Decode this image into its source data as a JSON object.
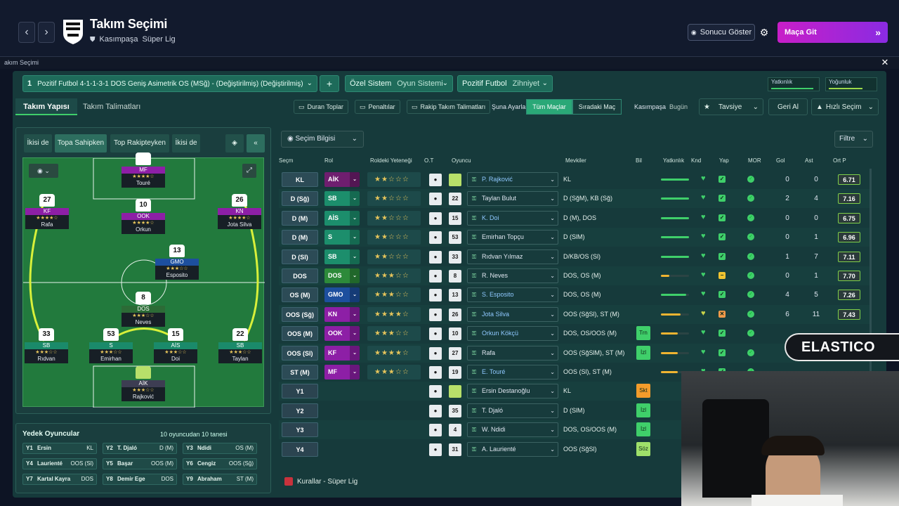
{
  "header": {
    "title": "Takım Seçimi",
    "club": "Kasımpaşa",
    "league": "Süper Lig",
    "results_button": "Sonucu Göster",
    "match_button": "Maça Git"
  },
  "subbar": {
    "title": "akım Seçimi"
  },
  "tactic": {
    "number": "1",
    "name": "Pozitif Futbol 4-1-1-3-1 DOS Geniş Asimetrik OS (MSğ) - (Değiştirilmiş) (Değiştirilmiş)",
    "add": "+",
    "system_label": "Özel Sistem",
    "system_value": "Oyun Sistemi",
    "mentality_label": "Pozitif Futbol",
    "mentality_value": "Zihniyet",
    "familiarity": "Yatkınlık",
    "intensity": "Yoğunluk"
  },
  "tabs": {
    "structure": "Takım Yapısı",
    "instructions": "Takım Talimatları"
  },
  "toolbar": {
    "set_pieces": "Duran Toplar",
    "penalties": "Penaltılar",
    "opposition": "Rakip Takım Talimatları",
    "adjust_label": "Şuna Ayarla",
    "all_matches": "Tüm Maçlar",
    "next_match": "Sıradaki Maç",
    "club": "Kasımpaşa",
    "today": "Bugün",
    "recommend": "Tavsiye",
    "undo": "Geri Al",
    "quick_pick": "Hızlı Seçim"
  },
  "pitch_tabs": [
    "İkisi de",
    "Topa Sahipken",
    "Top Rakipteyken",
    "İkisi de"
  ],
  "pitch_players": [
    {
      "num": "",
      "role": "MF",
      "stars": "★★★★☆",
      "name": "Touré",
      "color": "#8d1fa6"
    },
    {
      "num": "27",
      "role": "KF",
      "stars": "★★★★☆",
      "name": "Rafa",
      "color": "#8d1fa6"
    },
    {
      "num": "10",
      "role": "OOK",
      "stars": "★★★★☆",
      "name": "Orkun",
      "color": "#8d1fa6"
    },
    {
      "num": "26",
      "role": "KN",
      "stars": "★★★★☆",
      "name": "Jota Silva",
      "color": "#8d1fa6"
    },
    {
      "num": "13",
      "role": "GMO",
      "stars": "★★★☆☆",
      "name": "Esposito",
      "color": "#1d4f9e"
    },
    {
      "num": "8",
      "role": "DOS",
      "stars": "★★★☆☆",
      "name": "Neves",
      "color": "#2c6b36"
    },
    {
      "num": "33",
      "role": "SB",
      "stars": "★★★☆☆",
      "name": "Rıdvan",
      "color": "#1a8a6a"
    },
    {
      "num": "53",
      "role": "S",
      "stars": "★★★☆☆",
      "name": "Emirhan",
      "color": "#1a8a6a"
    },
    {
      "num": "15",
      "role": "AİS",
      "stars": "★★★☆☆",
      "name": "Doi",
      "color": "#1a8a6a"
    },
    {
      "num": "22",
      "role": "SB",
      "stars": "★★★☆☆",
      "name": "Taylan",
      "color": "#1a8a6a"
    },
    {
      "num": "",
      "role": "AİK",
      "stars": "★★★☆☆",
      "name": "Rajković",
      "color": "#3d3d52"
    }
  ],
  "subs": {
    "title": "Yedek Oyuncular",
    "count": "10 oyuncudan 10 tanesi",
    "items": [
      {
        "code": "Y1",
        "name": "Ersin",
        "pos": "KL"
      },
      {
        "code": "Y2",
        "name": "T. Djaló",
        "pos": "D (M)"
      },
      {
        "code": "Y3",
        "name": "Ndidi",
        "pos": "OS (M)"
      },
      {
        "code": "Y4",
        "name": "Laurienté",
        "pos": "OOS (Sl)"
      },
      {
        "code": "Y5",
        "name": "Başar",
        "pos": "OOS (M)"
      },
      {
        "code": "Y6",
        "name": "Cengiz",
        "pos": "OOS (Sğ)"
      },
      {
        "code": "Y7",
        "name": "Kartal Kayra",
        "pos": "DOS"
      },
      {
        "code": "Y8",
        "name": "Demir Ege",
        "pos": "DOS"
      },
      {
        "code": "Y9",
        "name": "Abraham",
        "pos": "ST (M)"
      }
    ]
  },
  "table": {
    "selection_info": "Seçim Bilgisi",
    "filter": "Filtre",
    "headers": [
      "Seçm",
      "Rol",
      "Roldeki Yeteneği",
      "O.T",
      "Oyuncu",
      "Mevkiler",
      "Bil",
      "Yatkınlık",
      "Knd",
      "Yap",
      "MOR",
      "Gol",
      "Ast",
      "Ort P"
    ],
    "rows": [
      {
        "sel": "KL",
        "role": "AİK",
        "stars": "★★☆☆☆",
        "shirt": "",
        "player": "P. Rajković",
        "pos": "KL",
        "bil": "",
        "goals": "0",
        "assists": "0",
        "rating": "6.71"
      },
      {
        "sel": "D (Sğ)",
        "role": "SB",
        "stars": "★★☆☆☆",
        "shirt": "22",
        "player": "Taylan Bulut",
        "pos": "D (SğM), KB (Sğ)",
        "bil": "",
        "goals": "2",
        "assists": "4",
        "rating": "7.16"
      },
      {
        "sel": "D (M)",
        "role": "AİS",
        "stars": "★★☆☆☆",
        "shirt": "15",
        "player": "K. Doi",
        "pos": "D (M), DOS",
        "bil": "",
        "goals": "0",
        "assists": "0",
        "rating": "6.75"
      },
      {
        "sel": "D (M)",
        "role": "S",
        "stars": "★★☆☆☆",
        "shirt": "53",
        "player": "Emirhan Topçu",
        "pos": "D (SlM)",
        "bil": "",
        "goals": "0",
        "assists": "1",
        "rating": "6.96"
      },
      {
        "sel": "D (Sl)",
        "role": "SB",
        "stars": "★★☆☆☆",
        "shirt": "33",
        "player": "Rıdvan Yılmaz",
        "pos": "D/KB/OS (Sl)",
        "bil": "",
        "goals": "1",
        "assists": "7",
        "rating": "7.11"
      },
      {
        "sel": "DOS",
        "role": "DOS",
        "stars": "★★★☆☆",
        "shirt": "8",
        "player": "R. Neves",
        "pos": "DOS, OS (M)",
        "bil": "",
        "goals": "0",
        "assists": "1",
        "rating": "7.70"
      },
      {
        "sel": "OS (M)",
        "role": "GMO",
        "stars": "★★★☆☆",
        "shirt": "13",
        "player": "S. Esposito",
        "pos": "DOS, OS (M)",
        "bil": "",
        "goals": "4",
        "assists": "5",
        "rating": "7.26"
      },
      {
        "sel": "OOS (Sğ)",
        "role": "KN",
        "stars": "★★★★☆",
        "shirt": "26",
        "player": "Jota Silva",
        "pos": "OOS (SğSl), ST (M)",
        "bil": "",
        "goals": "6",
        "assists": "11",
        "rating": "7.43"
      },
      {
        "sel": "OOS (M)",
        "role": "OOK",
        "stars": "★★★☆☆",
        "shirt": "10",
        "player": "Orkun Kökçü",
        "pos": "DOS, OS/OOS (M)",
        "bil": "Trn",
        "goals": "",
        "assists": "",
        "rating": ""
      },
      {
        "sel": "OOS (Sl)",
        "role": "KF",
        "stars": "★★★★☆",
        "shirt": "27",
        "player": "Rafa",
        "pos": "OOS (SğSlM), ST (M)",
        "bil": "İzl",
        "goals": "",
        "assists": "",
        "rating": ""
      },
      {
        "sel": "ST (M)",
        "role": "MF",
        "stars": "★★★☆☆",
        "shirt": "19",
        "player": "E. Touré",
        "pos": "OOS (Sl), ST (M)",
        "bil": "",
        "goals": "",
        "assists": "",
        "rating": ""
      },
      {
        "sel": "Y1",
        "role": "",
        "stars": "",
        "shirt": "",
        "player": "Ersin Destanoğlu",
        "pos": "KL",
        "bil": "Skt",
        "goals": "",
        "assists": "",
        "rating": ""
      },
      {
        "sel": "Y2",
        "role": "",
        "stars": "",
        "shirt": "35",
        "player": "T. Djaló",
        "pos": "D (SlM)",
        "bil": "İzl",
        "goals": "",
        "assists": "",
        "rating": ""
      },
      {
        "sel": "Y3",
        "role": "",
        "stars": "",
        "shirt": "4",
        "player": "W. Ndidi",
        "pos": "DOS, OS/OOS (M)",
        "bil": "İzl",
        "goals": "",
        "assists": "",
        "rating": ""
      },
      {
        "sel": "Y4",
        "role": "",
        "stars": "",
        "shirt": "31",
        "player": "A. Laurienté",
        "pos": "OOS (SğSl)",
        "bil": "Söz",
        "goals": "",
        "assists": "",
        "rating": ""
      }
    ]
  },
  "rules": "Kurallar - Süper Lig",
  "overlay": {
    "logo": "ELASTICO"
  },
  "colors": {
    "accent": "#c81ec8",
    "pitch": "#227a3d",
    "panel": "#163a3b"
  }
}
